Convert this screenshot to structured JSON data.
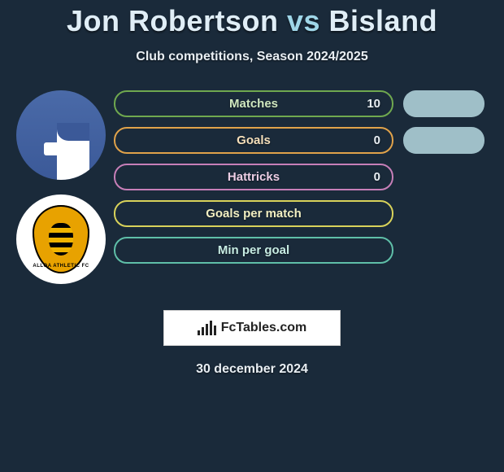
{
  "title": {
    "player1": "Jon Robertson",
    "vs": "vs",
    "player2": "Bisland"
  },
  "subtitle": "Club competitions, Season 2024/2025",
  "avatars": [
    {
      "name": "facebook-avatar",
      "kind": "fb"
    },
    {
      "name": "club-avatar",
      "kind": "club",
      "club_label": "ALLOA ATHLETIC FC"
    }
  ],
  "stats": [
    {
      "label": "Matches",
      "value_left": "10",
      "color": "g",
      "side_filled": true
    },
    {
      "label": "Goals",
      "value_left": "0",
      "color": "o",
      "side_filled": true
    },
    {
      "label": "Hattricks",
      "value_left": "0",
      "color": "p",
      "side_filled": false
    },
    {
      "label": "Goals per match",
      "value_left": "",
      "color": "y",
      "side_filled": false
    },
    {
      "label": "Min per goal",
      "value_left": "",
      "color": "t",
      "side_filled": false
    }
  ],
  "footer": {
    "brand": "FcTables.com"
  },
  "date": "30 december 2024",
  "style": {
    "background": "#1a2a3a",
    "title_fontsize": 36,
    "side_pill_color": "#9fbfc8",
    "pill_colors": {
      "g": "#6fa84f",
      "o": "#e0a24a",
      "p": "#c77fb8",
      "y": "#d8d25a",
      "t": "#5fbfa8"
    },
    "bar_heights": [
      6,
      10,
      14,
      18,
      12
    ]
  }
}
